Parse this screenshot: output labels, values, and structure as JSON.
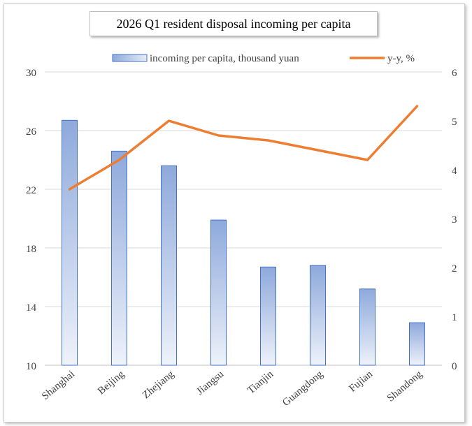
{
  "chart_data": {
    "type": "bar",
    "title": "2026 Q1 resident disposal incoming per capita",
    "categories": [
      "Shanghai",
      "Beijing",
      "Zhejiang",
      "Jiangsu",
      "Tianjin",
      "Guangdong",
      "Fujian",
      "Shandong"
    ],
    "series": [
      {
        "name": "incoming per capita, thousand yuan",
        "type": "bar",
        "axis": "left",
        "color": "#8ea9db",
        "values": [
          26.7,
          24.6,
          23.6,
          19.9,
          16.7,
          16.8,
          15.2,
          12.9
        ]
      },
      {
        "name": "y-y, %",
        "type": "line",
        "axis": "right",
        "color": "#ed7d31",
        "values": [
          3.6,
          4.2,
          5.0,
          4.7,
          4.6,
          4.4,
          4.2,
          5.3
        ]
      }
    ],
    "y_left": {
      "min": 10,
      "max": 30,
      "ticks": [
        10,
        14,
        18,
        22,
        26,
        30
      ]
    },
    "y_right": {
      "min": 0,
      "max": 6,
      "ticks": [
        0,
        1,
        2,
        3,
        4,
        5,
        6
      ]
    },
    "grid": true,
    "legend_position": "top"
  }
}
